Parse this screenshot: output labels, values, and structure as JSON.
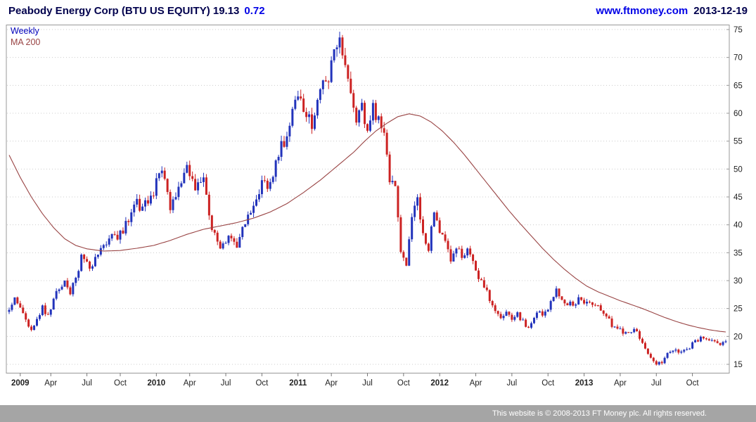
{
  "header": {
    "title": "Peabody Energy Corp (BTU US EQUITY) 19.13",
    "change": "0.72",
    "site": "www.ftmoney.com",
    "date": "2013-12-19"
  },
  "legend": {
    "timeframe": "Weekly",
    "ma_label": "MA 200"
  },
  "footer": {
    "text": "This website is © 2008-2013 FT Money plc. All rights reserved."
  },
  "colors": {
    "title": "#00004d",
    "change": "#0000e6",
    "link": "#0000e6",
    "date": "#00004d",
    "timeframe_label": "#0000bb",
    "ma_line": "#994444",
    "up_candle": "#2233bb",
    "down_candle": "#cc2222",
    "grid": "#cccccc",
    "plot_border": "#999999",
    "axis_text": "#222222",
    "footer_bg": "#a5a5a5",
    "footer_text": "#ffffff"
  },
  "chart_data": {
    "type": "candlestick",
    "timeframe": "weekly",
    "title": "Peabody Energy Corp (BTU US EQUITY)",
    "last_price": 19.13,
    "change": 0.72,
    "ylim": [
      13.5,
      75.8
    ],
    "yticks": [
      15,
      20,
      25,
      30,
      35,
      40,
      45,
      50,
      55,
      60,
      65,
      70,
      75
    ],
    "grid": "horizontal-dotted",
    "legend_position": "top-left",
    "weeks_total": 259,
    "xticks": [
      [
        4,
        "2009"
      ],
      [
        15,
        "Apr"
      ],
      [
        28,
        "Jul"
      ],
      [
        40,
        "Oct"
      ],
      [
        53,
        "2010"
      ],
      [
        65,
        "Apr"
      ],
      [
        78,
        "Jul"
      ],
      [
        91,
        "Oct"
      ],
      [
        104,
        "2011"
      ],
      [
        116,
        "Apr"
      ],
      [
        129,
        "Jul"
      ],
      [
        142,
        "Oct"
      ],
      [
        155,
        "2012"
      ],
      [
        168,
        "Apr"
      ],
      [
        181,
        "Jul"
      ],
      [
        194,
        "Oct"
      ],
      [
        207,
        "2013"
      ],
      [
        220,
        "Apr"
      ],
      [
        233,
        "Jul"
      ],
      [
        246,
        "Oct"
      ]
    ],
    "series": [
      {
        "name": "BTU weekly close path (keypoints: [week, price])"
      },
      {
        "name": "MA 200 (keypoints: [week, value])"
      }
    ],
    "close_keypoints": [
      [
        0,
        24.5
      ],
      [
        2,
        26.5
      ],
      [
        4,
        25
      ],
      [
        6,
        22.5
      ],
      [
        8,
        21
      ],
      [
        10,
        23
      ],
      [
        12,
        25
      ],
      [
        14,
        23.5
      ],
      [
        17,
        27.5
      ],
      [
        20,
        30
      ],
      [
        22,
        28
      ],
      [
        26,
        34
      ],
      [
        29,
        32.5
      ],
      [
        33,
        36
      ],
      [
        36,
        38
      ],
      [
        39,
        37.5
      ],
      [
        42,
        40
      ],
      [
        45,
        44.5
      ],
      [
        48,
        43
      ],
      [
        52,
        46
      ],
      [
        55,
        50.5
      ],
      [
        58,
        43.5
      ],
      [
        61,
        46
      ],
      [
        64,
        49.5
      ],
      [
        67,
        46.5
      ],
      [
        70,
        48.5
      ],
      [
        73,
        38.5
      ],
      [
        76,
        36
      ],
      [
        79,
        38.5
      ],
      [
        82,
        36.5
      ],
      [
        85,
        40
      ],
      [
        88,
        44
      ],
      [
        91,
        48
      ],
      [
        94,
        47
      ],
      [
        97,
        52
      ],
      [
        100,
        57
      ],
      [
        103,
        63
      ],
      [
        106,
        61.5
      ],
      [
        109,
        58.5
      ],
      [
        112,
        64
      ],
      [
        115,
        67
      ],
      [
        117,
        70
      ],
      [
        119,
        73.5
      ],
      [
        121,
        68
      ],
      [
        123,
        64.5
      ],
      [
        125,
        59
      ],
      [
        127,
        61.5
      ],
      [
        129,
        57.5
      ],
      [
        131,
        60.5
      ],
      [
        133,
        59
      ],
      [
        135,
        57
      ],
      [
        137,
        47.5
      ],
      [
        139,
        46
      ],
      [
        141,
        36
      ],
      [
        143,
        32.5
      ],
      [
        145,
        42
      ],
      [
        147,
        44.5
      ],
      [
        149,
        38
      ],
      [
        151,
        35.5
      ],
      [
        153,
        42
      ],
      [
        155,
        38.5
      ],
      [
        157,
        36.5
      ],
      [
        159,
        34
      ],
      [
        161,
        36.5
      ],
      [
        163,
        34
      ],
      [
        165,
        35.5
      ],
      [
        167,
        33
      ],
      [
        169,
        30.5
      ],
      [
        171,
        29.5
      ],
      [
        173,
        27
      ],
      [
        175,
        25
      ],
      [
        177,
        23.5
      ],
      [
        179,
        24.5
      ],
      [
        181,
        22.5
      ],
      [
        183,
        24
      ],
      [
        185,
        22.5
      ],
      [
        187,
        21.5
      ],
      [
        189,
        23
      ],
      [
        191,
        24.5
      ],
      [
        193,
        24
      ],
      [
        195,
        26
      ],
      [
        197,
        28.5
      ],
      [
        199,
        27
      ],
      [
        201,
        26
      ],
      [
        203,
        25.5
      ],
      [
        205,
        27
      ],
      [
        207,
        26.5
      ],
      [
        209,
        26.5
      ],
      [
        211,
        25.5
      ],
      [
        213,
        24.5
      ],
      [
        215,
        23.5
      ],
      [
        217,
        22
      ],
      [
        219,
        21.5
      ],
      [
        221,
        21
      ],
      [
        223,
        20.5
      ],
      [
        225,
        21
      ],
      [
        227,
        20
      ],
      [
        229,
        18
      ],
      [
        231,
        16.5
      ],
      [
        233,
        15.2
      ],
      [
        235,
        15.5
      ],
      [
        237,
        17
      ],
      [
        239,
        17.5
      ],
      [
        241,
        17
      ],
      [
        243,
        17.5
      ],
      [
        245,
        18
      ],
      [
        247,
        19
      ],
      [
        249,
        19.5
      ],
      [
        251,
        20
      ],
      [
        253,
        19
      ],
      [
        255,
        18.8
      ],
      [
        258,
        19.13
      ]
    ],
    "ma200_keypoints": [
      [
        0,
        52.5
      ],
      [
        4,
        48.5
      ],
      [
        8,
        45
      ],
      [
        12,
        42
      ],
      [
        16,
        39.5
      ],
      [
        20,
        37.5
      ],
      [
        24,
        36.3
      ],
      [
        28,
        35.7
      ],
      [
        34,
        35.3
      ],
      [
        40,
        35.4
      ],
      [
        46,
        35.8
      ],
      [
        52,
        36.3
      ],
      [
        58,
        37.2
      ],
      [
        64,
        38.3
      ],
      [
        70,
        39.2
      ],
      [
        76,
        39.8
      ],
      [
        82,
        40.4
      ],
      [
        88,
        41.2
      ],
      [
        94,
        42.3
      ],
      [
        100,
        43.8
      ],
      [
        106,
        45.8
      ],
      [
        112,
        48
      ],
      [
        118,
        50.5
      ],
      [
        124,
        53
      ],
      [
        128,
        55
      ],
      [
        132,
        56.8
      ],
      [
        136,
        58.2
      ],
      [
        140,
        59.4
      ],
      [
        144,
        59.9
      ],
      [
        148,
        59.5
      ],
      [
        152,
        58.4
      ],
      [
        156,
        56.8
      ],
      [
        160,
        54.8
      ],
      [
        164,
        52.5
      ],
      [
        168,
        50
      ],
      [
        172,
        47.5
      ],
      [
        176,
        45
      ],
      [
        180,
        42.5
      ],
      [
        184,
        40.2
      ],
      [
        188,
        38
      ],
      [
        192,
        35.8
      ],
      [
        196,
        33.8
      ],
      [
        200,
        32
      ],
      [
        204,
        30.4
      ],
      [
        208,
        29
      ],
      [
        212,
        28
      ],
      [
        216,
        27.2
      ],
      [
        220,
        26.4
      ],
      [
        224,
        25.7
      ],
      [
        228,
        25
      ],
      [
        232,
        24.2
      ],
      [
        236,
        23.4
      ],
      [
        240,
        22.7
      ],
      [
        244,
        22.1
      ],
      [
        248,
        21.6
      ],
      [
        252,
        21.2
      ],
      [
        256,
        20.9
      ],
      [
        258,
        20.8
      ]
    ]
  }
}
